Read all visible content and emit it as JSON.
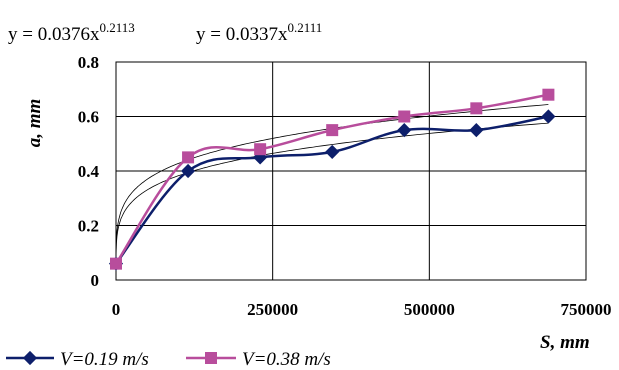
{
  "chart_data": {
    "type": "line",
    "x": [
      0,
      115000,
      230000,
      345000,
      460000,
      575000,
      690000
    ],
    "xlabel": "S, mm",
    "ylabel": "a, mm",
    "xlim": [
      0,
      750000
    ],
    "ylim": [
      0,
      0.8
    ],
    "xticks": [
      "0",
      "250000",
      "500000",
      "750000"
    ],
    "yticks": [
      "0",
      "0.2",
      "0.4",
      "0.6",
      "0.8"
    ],
    "grid": true,
    "legend_position": "bottom-left",
    "series": [
      {
        "name": "V=0.19 m/s",
        "color": "#0D1F6B",
        "marker": "diamond",
        "values": [
          0.06,
          0.4,
          0.45,
          0.47,
          0.55,
          0.55,
          0.6
        ]
      },
      {
        "name": "V=0.38 m/s",
        "color": "#B84D9C",
        "marker": "square",
        "values": [
          0.06,
          0.45,
          0.48,
          0.55,
          0.6,
          0.63,
          0.68
        ]
      }
    ],
    "trendlines": [
      {
        "equation_base": "y = 0.0376x",
        "exponent": "0.2113",
        "a": 0.0376,
        "b": 0.2113
      },
      {
        "equation_base": "y = 0.0337x",
        "exponent": "0.2111",
        "a": 0.0337,
        "b": 0.2111
      }
    ]
  }
}
